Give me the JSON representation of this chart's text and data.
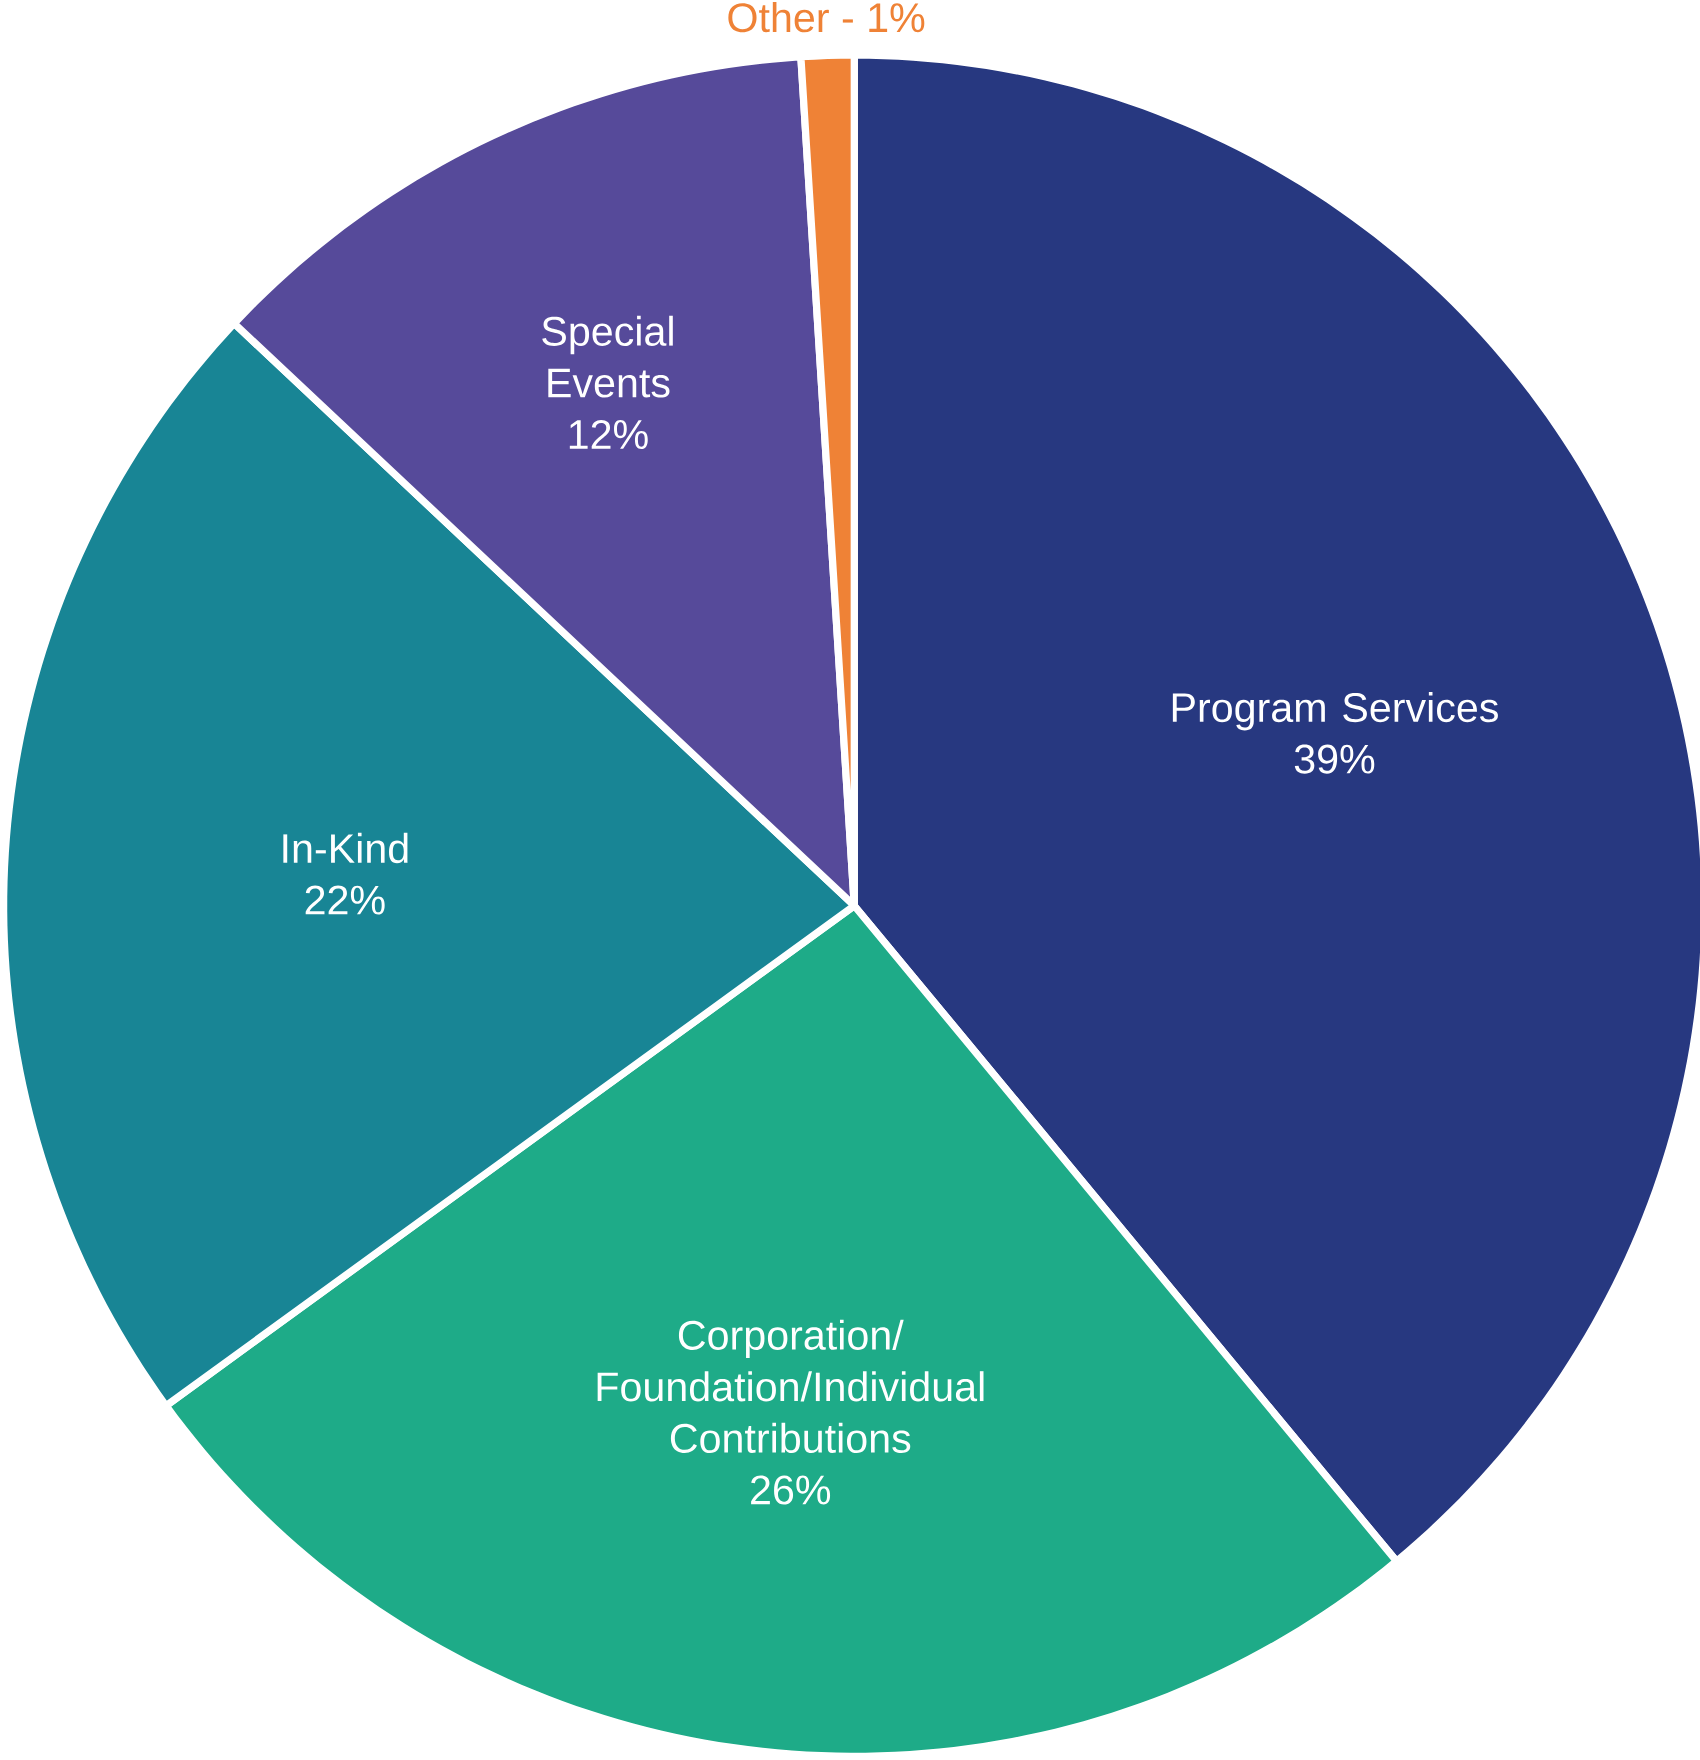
{
  "chart_data": {
    "type": "pie",
    "categories": [
      "Program Services",
      "Corporation/ Foundation/Individual Contributions",
      "In-Kind",
      "Special Events",
      "Other - 1%"
    ],
    "values": [
      39,
      26,
      22,
      12,
      1
    ],
    "colors": [
      "#273880",
      "#1eab88",
      "#188595",
      "#564a9a",
      "#ef8236"
    ],
    "value_labels": [
      "39%",
      "26%",
      "22%",
      "12%",
      null
    ]
  }
}
